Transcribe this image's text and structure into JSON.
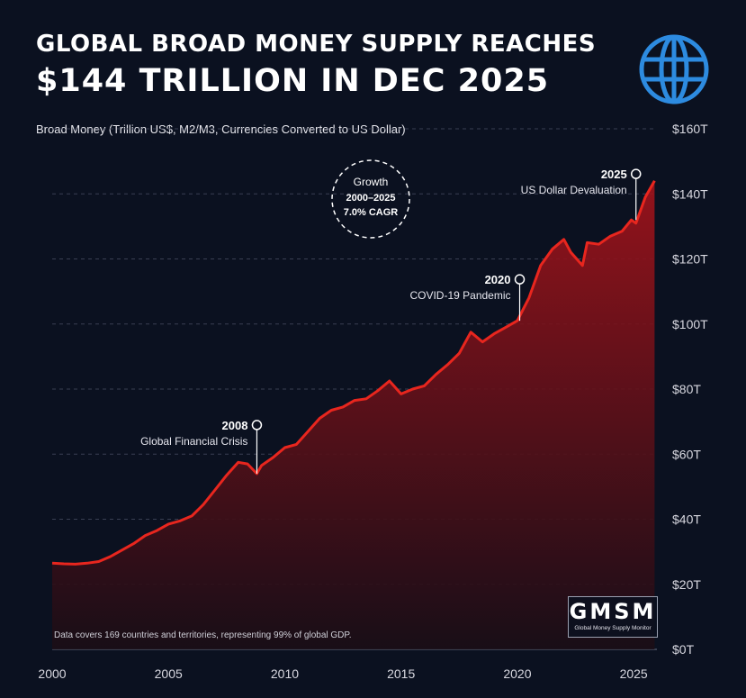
{
  "header": {
    "title_line_1": "GLOBAL BROAD MONEY SUPPLY REACHES",
    "title_line_2": "$144 TRILLION IN DEC 2025",
    "subtitle": "Broad Money (Trillion US$, M2/M3, Currencies Converted to US Dollar)"
  },
  "badge": {
    "line1": "Growth",
    "line2": "2000–2025",
    "line3": "7.0% CAGR"
  },
  "annotations": [
    {
      "year": "2008",
      "label": "Global Financial Crisis",
      "x": 2008.8,
      "y": 54
    },
    {
      "year": "2020",
      "label": "COVID-19 Pandemic",
      "x": 2020.1,
      "y": 101
    },
    {
      "year": "2025",
      "label": "US Dollar Devaluation",
      "x": 2025.1,
      "y": 132
    }
  ],
  "footnote": "Data covers 169 countries and territories, representing 99% of global GDP.",
  "logo": {
    "text": "GMSM",
    "subtext": "Global Money Supply Monitor"
  },
  "colors": {
    "background": "#0b1120",
    "line": "#e8261e",
    "fill_top": "#a3131b",
    "fill_bottom": "#1a0d16",
    "grid": "#3a3f52",
    "globe": "#2d8be0"
  },
  "icons": {
    "globe": "globe-icon"
  },
  "chart_data": {
    "type": "area",
    "title": "Global Broad Money Supply",
    "ylabel": "Broad Money (Trillion US$)",
    "xlabel": "",
    "ylim": [
      0,
      160
    ],
    "xlim": [
      2000,
      2026
    ],
    "y_ticks": [
      0,
      20,
      40,
      60,
      80,
      100,
      120,
      140,
      160
    ],
    "y_tick_labels": [
      "$0T",
      "$20T",
      "$40T",
      "$60T",
      "$80T",
      "$100T",
      "$120T",
      "$140T",
      "$160T"
    ],
    "x_ticks": [
      2000,
      2005,
      2010,
      2015,
      2020,
      2025
    ],
    "x_tick_labels": [
      "2000",
      "2005",
      "2010",
      "2015",
      "2020",
      "2025"
    ],
    "grid": true,
    "series": [
      {
        "name": "Broad Money (Trillion US$)",
        "x": [
          2000,
          2000.5,
          2001,
          2001.5,
          2002,
          2002.5,
          2003,
          2003.5,
          2004,
          2004.5,
          2005,
          2005.5,
          2006,
          2006.5,
          2007,
          2007.5,
          2008,
          2008.4,
          2008.8,
          2009,
          2009.5,
          2010,
          2010.5,
          2011,
          2011.5,
          2012,
          2012.5,
          2013,
          2013.5,
          2014,
          2014.5,
          2015,
          2015.5,
          2016,
          2016.5,
          2017,
          2017.5,
          2018,
          2018.5,
          2019,
          2019.5,
          2020,
          2020.5,
          2021,
          2021.5,
          2022,
          2022.3,
          2022.8,
          2023,
          2023.5,
          2024,
          2024.5,
          2024.9,
          2025.1,
          2025.5,
          2025.9
        ],
        "values": [
          26.5,
          26.3,
          26.2,
          26.5,
          27,
          28.5,
          30.5,
          32.5,
          35,
          36.5,
          38.5,
          39.5,
          41,
          44.5,
          49,
          53.5,
          57.5,
          57,
          54,
          56.5,
          59,
          62,
          63,
          67,
          71,
          73.5,
          74.5,
          76.5,
          77,
          79.5,
          82.5,
          78.5,
          80,
          81,
          84.5,
          87.5,
          91,
          97.5,
          94.5,
          97,
          99,
          101,
          108,
          118,
          123,
          126,
          122,
          118,
          125,
          124.5,
          127,
          128.5,
          132,
          131,
          139,
          144
        ]
      }
    ]
  }
}
